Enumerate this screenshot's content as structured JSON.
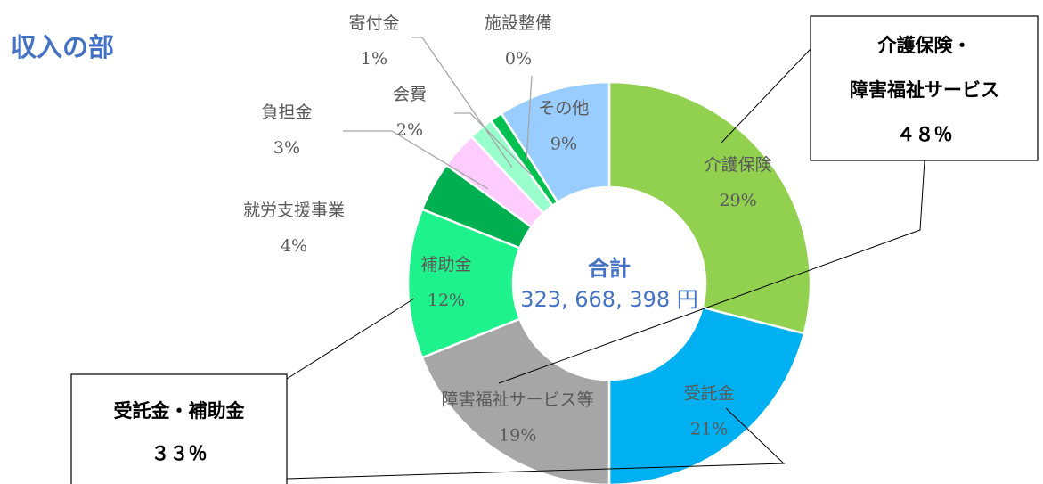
{
  "chart_data": {
    "type": "donut",
    "title": "収入の部",
    "categories": [
      "介護保険",
      "受託金",
      "障害福祉サービス等",
      "補助金",
      "就労支援事業",
      "負担金",
      "会費",
      "寄付金",
      "施設整備",
      "その他"
    ],
    "values": [
      29,
      21,
      19,
      12,
      4,
      3,
      2,
      1,
      0,
      9
    ],
    "value_labels": [
      "29%",
      "21%",
      "19%",
      "12%",
      "4%",
      "3%",
      "2%",
      "1%",
      "0%",
      "9%"
    ],
    "colors": [
      "#92d050",
      "#00b0f0",
      "#a6a6a6",
      "#1ef28c",
      "#00b050",
      "#ffccff",
      "#99ffcc",
      "#00c050",
      "#0070c0",
      "#99ccff"
    ],
    "center_label": "合計",
    "total_label": "323, 668, 398 円",
    "callouts": [
      {
        "lines": [
          "介護保険・",
          "障害福祉サービス",
          "４８％"
        ]
      },
      {
        "lines": [
          "受託金・補助金",
          "３３％"
        ]
      }
    ]
  }
}
